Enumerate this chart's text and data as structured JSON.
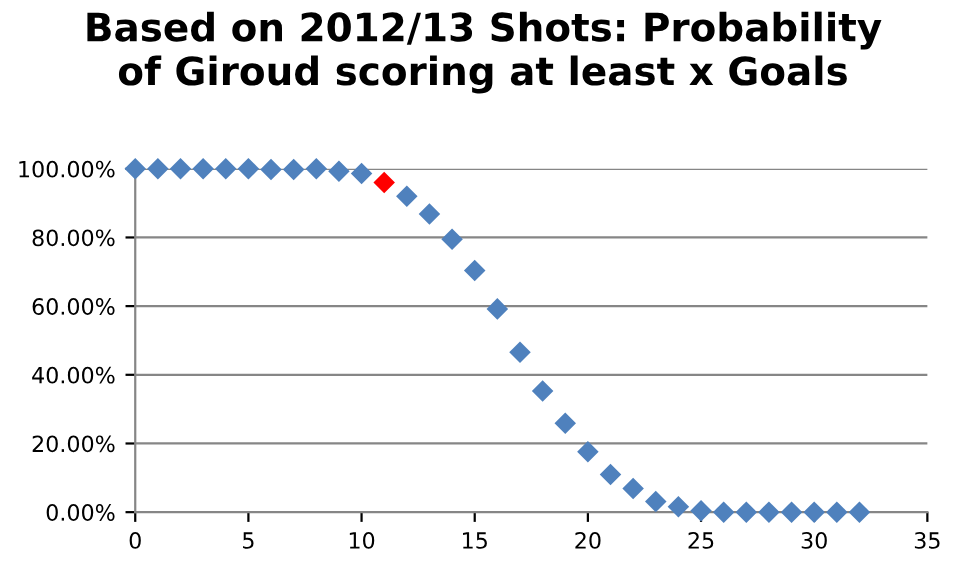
{
  "chart_data": {
    "type": "scatter",
    "title": "Based on 2012/13 Shots: Probability\nof Giroud scoring at least x Goals",
    "x": [
      0,
      1,
      2,
      3,
      4,
      5,
      6,
      7,
      8,
      9,
      10,
      11,
      12,
      13,
      14,
      15,
      16,
      17,
      18,
      19,
      20,
      21,
      22,
      23,
      24,
      25,
      26,
      27,
      28,
      29,
      30,
      31,
      32
    ],
    "values": [
      100,
      100,
      100,
      100,
      100,
      100,
      99.8,
      99.8,
      100,
      99.3,
      98.6,
      96,
      92,
      86.8,
      79.5,
      70.4,
      59.2,
      46.6,
      35.3,
      25.9,
      17.6,
      11,
      6.9,
      3.1,
      1.6,
      0.4,
      0,
      0,
      0,
      0,
      0,
      0,
      0
    ],
    "colors": [
      "#4f81bd",
      "#4f81bd",
      "#4f81bd",
      "#4f81bd",
      "#4f81bd",
      "#4f81bd",
      "#4f81bd",
      "#4f81bd",
      "#4f81bd",
      "#4f81bd",
      "#4f81bd",
      "#ff0000",
      "#4f81bd",
      "#4f81bd",
      "#4f81bd",
      "#4f81bd",
      "#4f81bd",
      "#4f81bd",
      "#4f81bd",
      "#4f81bd",
      "#4f81bd",
      "#4f81bd",
      "#4f81bd",
      "#4f81bd",
      "#4f81bd",
      "#4f81bd",
      "#4f81bd",
      "#4f81bd",
      "#4f81bd",
      "#4f81bd",
      "#4f81bd",
      "#4f81bd",
      "#4f81bd"
    ],
    "marker": "diamond",
    "xlim": [
      0,
      35
    ],
    "xticks": [
      0,
      5,
      10,
      15,
      20,
      25,
      30,
      35
    ],
    "ylim": [
      0,
      100
    ],
    "yticks": [
      {
        "value": 0,
        "label": "0.00%"
      },
      {
        "value": 20,
        "label": "20.00%"
      },
      {
        "value": 40,
        "label": "40.00%"
      },
      {
        "value": 60,
        "label": "60.00%"
      },
      {
        "value": 80,
        "label": "80.00%"
      },
      {
        "value": 100,
        "label": "100.00%"
      }
    ],
    "grid": "y"
  }
}
